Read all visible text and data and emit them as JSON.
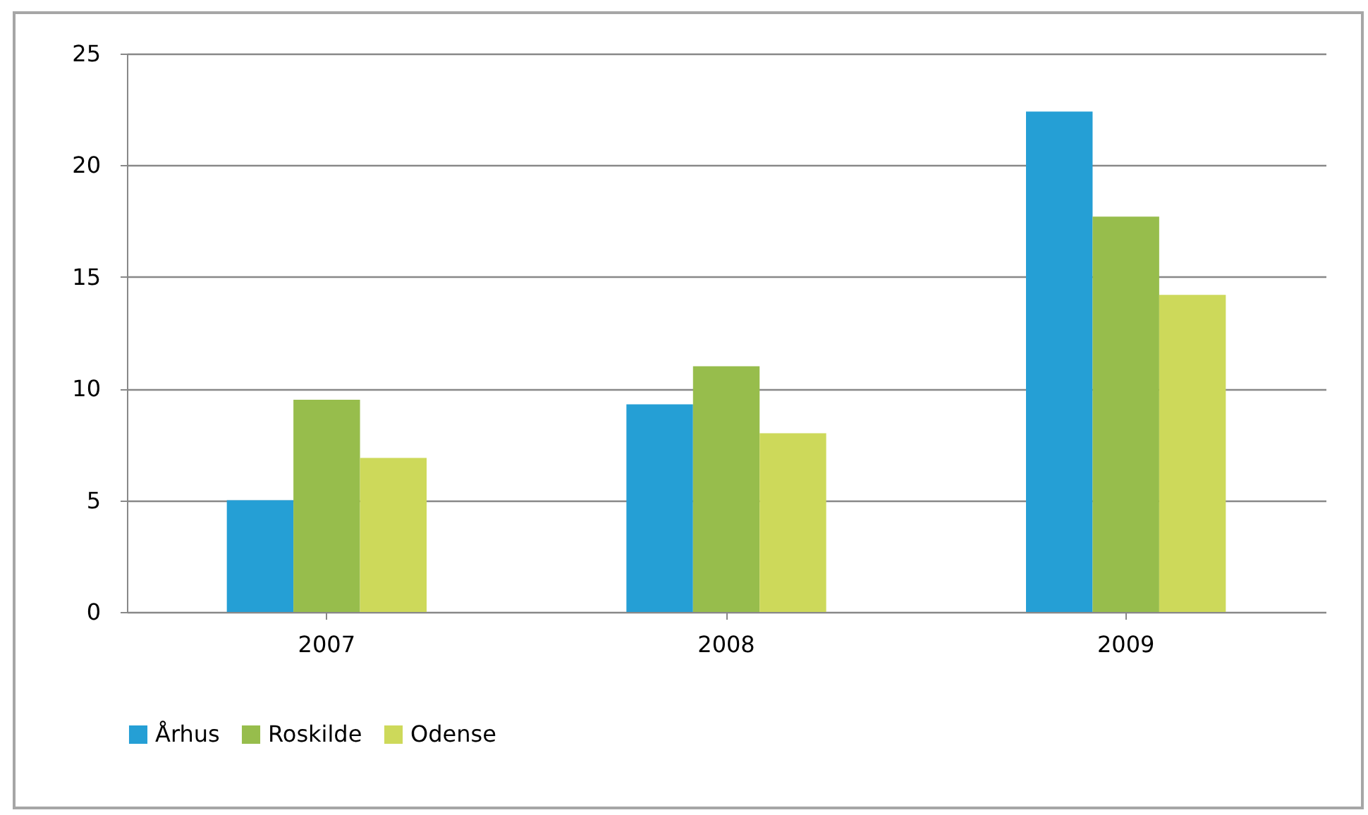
{
  "chart_data": {
    "type": "bar",
    "categories": [
      "2007",
      "2008",
      "2009"
    ],
    "series": [
      {
        "name": "Århus",
        "color": "#259fd5",
        "values": [
          5.0,
          9.3,
          22.4
        ]
      },
      {
        "name": "Roskilde",
        "color": "#97bd4c",
        "values": [
          9.5,
          11.0,
          17.7
        ]
      },
      {
        "name": "Odense",
        "color": "#cdd95a",
        "values": [
          6.9,
          8.0,
          14.2
        ]
      }
    ],
    "ylim": [
      0,
      25
    ],
    "yticks": [
      0,
      5,
      10,
      15,
      20,
      25
    ],
    "grid": "y",
    "legend": "bottom"
  }
}
